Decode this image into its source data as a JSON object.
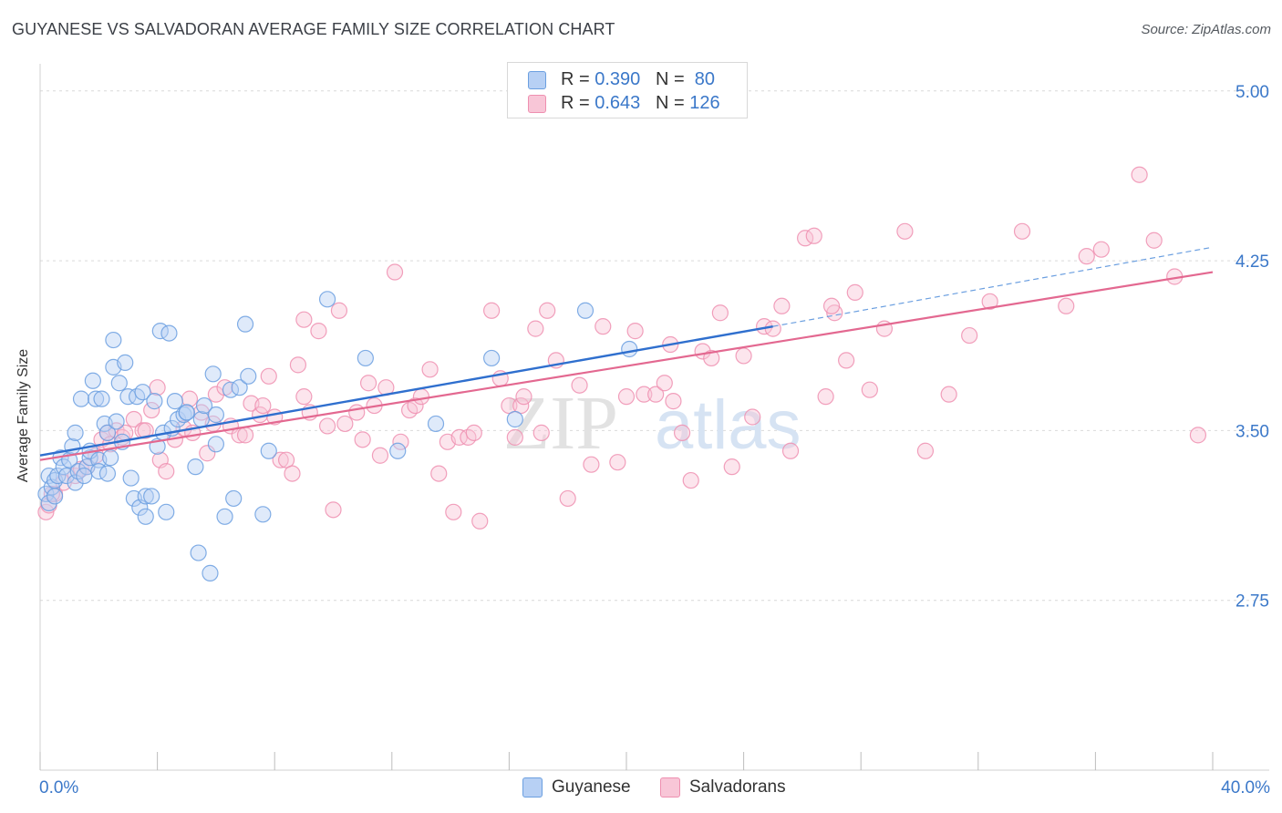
{
  "title": "GUYANESE VS SALVADORAN AVERAGE FAMILY SIZE CORRELATION CHART",
  "source": "Source: ZipAtlas.com",
  "watermark": "ZIPatlas",
  "colors": {
    "guyanese": "#6b9fe0",
    "guyanese_fill": "#b7d0f4",
    "guyanese_line": "#2f6fce",
    "salvadoran": "#ee8fb0",
    "salvadoran_fill": "#f8c6d7",
    "salvadoran_line": "#e36890",
    "tick_text": "#3b78c9",
    "grid": "#d9d9d9"
  },
  "legend": {
    "rows": [
      {
        "r_label": "R = ",
        "r_value": "0.390",
        "n_label": "N = ",
        "n_value": " 80"
      },
      {
        "r_label": "R = ",
        "r_value": "0.643",
        "n_label": "N = ",
        "n_value": "126"
      }
    ]
  },
  "bottom_legend": [
    "Guyanese",
    "Salvadorans"
  ],
  "chart_data": {
    "type": "scatter",
    "title": "GUYANESE VS SALVADORAN AVERAGE FAMILY SIZE CORRELATION CHART",
    "xlabel": "",
    "ylabel": "Average Family Size",
    "xlim": [
      0,
      40
    ],
    "ylim": [
      2.0,
      5.12
    ],
    "x_tick_labels": [
      "0.0%",
      "40.0%"
    ],
    "y_ticks": [
      2.75,
      3.5,
      4.25,
      5.0
    ],
    "y_tick_labels": [
      "2.75",
      "3.50",
      "4.25",
      "5.00"
    ],
    "grid": true,
    "legend_position": "top-center",
    "series": [
      {
        "name": "Guyanese",
        "r": 0.39,
        "n": 80,
        "trend": {
          "x0": 0,
          "y0": 3.39,
          "x1": 25,
          "y1": 3.96,
          "dashed_to_x": 40,
          "dashed_to_y": 4.31
        },
        "points": [
          [
            0.2,
            3.22
          ],
          [
            0.3,
            3.3
          ],
          [
            0.3,
            3.18
          ],
          [
            0.4,
            3.25
          ],
          [
            0.5,
            3.28
          ],
          [
            0.6,
            3.3
          ],
          [
            0.7,
            3.38
          ],
          [
            0.8,
            3.34
          ],
          [
            0.9,
            3.3
          ],
          [
            1.0,
            3.37
          ],
          [
            1.1,
            3.43
          ],
          [
            1.2,
            3.27
          ],
          [
            1.2,
            3.49
          ],
          [
            1.3,
            3.32
          ],
          [
            1.4,
            3.64
          ],
          [
            1.6,
            3.34
          ],
          [
            1.7,
            3.38
          ],
          [
            1.7,
            3.41
          ],
          [
            1.8,
            3.72
          ],
          [
            1.9,
            3.64
          ],
          [
            2.0,
            3.37
          ],
          [
            2.0,
            3.32
          ],
          [
            2.1,
            3.64
          ],
          [
            2.2,
            3.53
          ],
          [
            2.3,
            3.49
          ],
          [
            2.4,
            3.38
          ],
          [
            2.5,
            3.78
          ],
          [
            2.5,
            3.9
          ],
          [
            2.6,
            3.54
          ],
          [
            2.7,
            3.71
          ],
          [
            2.8,
            3.45
          ],
          [
            2.9,
            3.8
          ],
          [
            3.0,
            3.65
          ],
          [
            3.1,
            3.29
          ],
          [
            3.2,
            3.2
          ],
          [
            3.3,
            3.65
          ],
          [
            3.4,
            3.16
          ],
          [
            3.5,
            3.67
          ],
          [
            3.6,
            3.21
          ],
          [
            3.6,
            3.12
          ],
          [
            3.8,
            3.21
          ],
          [
            3.9,
            3.63
          ],
          [
            4.0,
            3.43
          ],
          [
            4.1,
            3.94
          ],
          [
            4.2,
            3.49
          ],
          [
            4.3,
            3.14
          ],
          [
            4.4,
            3.93
          ],
          [
            4.5,
            3.51
          ],
          [
            4.6,
            3.63
          ],
          [
            4.7,
            3.55
          ],
          [
            4.9,
            3.57
          ],
          [
            5.0,
            3.58
          ],
          [
            5.3,
            3.34
          ],
          [
            5.4,
            2.96
          ],
          [
            5.5,
            3.55
          ],
          [
            5.6,
            3.61
          ],
          [
            5.8,
            2.87
          ],
          [
            5.9,
            3.75
          ],
          [
            6.0,
            3.44
          ],
          [
            6.0,
            3.57
          ],
          [
            6.3,
            3.12
          ],
          [
            6.5,
            3.68
          ],
          [
            6.6,
            3.2
          ],
          [
            6.8,
            3.69
          ],
          [
            7.0,
            3.97
          ],
          [
            7.1,
            3.74
          ],
          [
            7.6,
            3.13
          ],
          [
            7.8,
            3.41
          ],
          [
            9.8,
            4.08
          ],
          [
            11.1,
            3.82
          ],
          [
            12.2,
            3.41
          ],
          [
            13.5,
            3.53
          ],
          [
            15.4,
            3.82
          ],
          [
            16.2,
            3.55
          ],
          [
            18.6,
            4.03
          ],
          [
            20.1,
            3.86
          ],
          [
            0.5,
            3.21
          ],
          [
            1.5,
            3.3
          ],
          [
            2.3,
            3.31
          ],
          [
            5.0,
            3.58
          ]
        ]
      },
      {
        "name": "Salvadorans",
        "r": 0.643,
        "n": 126,
        "trend": {
          "x0": 0,
          "y0": 3.37,
          "x1": 40,
          "y1": 4.2
        },
        "points": [
          [
            0.2,
            3.14
          ],
          [
            0.3,
            3.17
          ],
          [
            0.5,
            3.22
          ],
          [
            0.8,
            3.27
          ],
          [
            1.2,
            3.3
          ],
          [
            1.4,
            3.33
          ],
          [
            1.6,
            3.34
          ],
          [
            1.9,
            3.39
          ],
          [
            2.1,
            3.46
          ],
          [
            2.3,
            3.49
          ],
          [
            2.4,
            3.44
          ],
          [
            2.6,
            3.5
          ],
          [
            2.8,
            3.47
          ],
          [
            2.9,
            3.49
          ],
          [
            3.2,
            3.55
          ],
          [
            3.5,
            3.5
          ],
          [
            3.8,
            3.59
          ],
          [
            4.0,
            3.69
          ],
          [
            4.1,
            3.37
          ],
          [
            4.3,
            3.32
          ],
          [
            4.6,
            3.46
          ],
          [
            4.9,
            3.51
          ],
          [
            5.1,
            3.64
          ],
          [
            5.2,
            3.49
          ],
          [
            5.5,
            3.58
          ],
          [
            5.7,
            3.4
          ],
          [
            5.9,
            3.53
          ],
          [
            6.0,
            3.66
          ],
          [
            6.3,
            3.69
          ],
          [
            6.5,
            3.52
          ],
          [
            6.8,
            3.48
          ],
          [
            7.0,
            3.48
          ],
          [
            7.2,
            3.62
          ],
          [
            7.5,
            3.57
          ],
          [
            7.6,
            3.61
          ],
          [
            7.8,
            3.74
          ],
          [
            8.0,
            3.56
          ],
          [
            8.2,
            3.37
          ],
          [
            8.4,
            3.37
          ],
          [
            8.6,
            3.31
          ],
          [
            8.8,
            3.79
          ],
          [
            9.0,
            3.65
          ],
          [
            9.2,
            3.58
          ],
          [
            9.5,
            3.94
          ],
          [
            9.8,
            3.52
          ],
          [
            10.0,
            3.15
          ],
          [
            10.2,
            4.03
          ],
          [
            10.4,
            3.53
          ],
          [
            10.8,
            3.58
          ],
          [
            11.0,
            3.46
          ],
          [
            11.2,
            3.71
          ],
          [
            11.4,
            3.61
          ],
          [
            11.6,
            3.39
          ],
          [
            11.8,
            3.69
          ],
          [
            12.1,
            4.2
          ],
          [
            12.3,
            3.45
          ],
          [
            12.6,
            3.59
          ],
          [
            12.8,
            3.61
          ],
          [
            13.0,
            3.65
          ],
          [
            13.3,
            3.77
          ],
          [
            13.6,
            3.31
          ],
          [
            13.9,
            3.45
          ],
          [
            14.1,
            3.14
          ],
          [
            14.3,
            3.47
          ],
          [
            14.6,
            3.47
          ],
          [
            14.8,
            3.49
          ],
          [
            15.0,
            3.1
          ],
          [
            15.4,
            4.03
          ],
          [
            15.7,
            3.73
          ],
          [
            16.0,
            3.61
          ],
          [
            16.2,
            3.47
          ],
          [
            16.4,
            3.61
          ],
          [
            16.5,
            3.65
          ],
          [
            16.9,
            3.95
          ],
          [
            17.1,
            3.49
          ],
          [
            17.3,
            4.03
          ],
          [
            17.6,
            3.81
          ],
          [
            18.0,
            3.2
          ],
          [
            18.4,
            3.7
          ],
          [
            18.8,
            3.35
          ],
          [
            19.2,
            3.96
          ],
          [
            19.7,
            3.36
          ],
          [
            20.0,
            3.65
          ],
          [
            20.3,
            3.94
          ],
          [
            20.6,
            3.66
          ],
          [
            21.0,
            3.66
          ],
          [
            21.3,
            3.71
          ],
          [
            21.6,
            3.63
          ],
          [
            21.9,
            3.49
          ],
          [
            22.2,
            3.28
          ],
          [
            22.6,
            3.85
          ],
          [
            22.9,
            3.82
          ],
          [
            23.2,
            4.02
          ],
          [
            23.6,
            3.34
          ],
          [
            24.0,
            3.83
          ],
          [
            24.3,
            3.56
          ],
          [
            24.7,
            3.96
          ],
          [
            25.0,
            3.95
          ],
          [
            25.3,
            4.05
          ],
          [
            25.6,
            3.41
          ],
          [
            26.1,
            4.35
          ],
          [
            26.4,
            4.36
          ],
          [
            26.8,
            3.65
          ],
          [
            27.1,
            4.02
          ],
          [
            27.5,
            3.81
          ],
          [
            27.8,
            4.11
          ],
          [
            28.3,
            3.68
          ],
          [
            28.8,
            3.95
          ],
          [
            29.5,
            4.38
          ],
          [
            30.2,
            3.41
          ],
          [
            31.0,
            3.66
          ],
          [
            31.7,
            3.92
          ],
          [
            32.4,
            4.07
          ],
          [
            33.5,
            4.38
          ],
          [
            35.0,
            4.05
          ],
          [
            35.7,
            4.27
          ],
          [
            36.2,
            4.3
          ],
          [
            37.5,
            4.63
          ],
          [
            38.0,
            4.34
          ],
          [
            38.7,
            4.18
          ],
          [
            39.5,
            3.48
          ],
          [
            27.0,
            4.05
          ],
          [
            21.5,
            3.88
          ],
          [
            9.0,
            3.99
          ],
          [
            3.6,
            3.5
          ],
          [
            0.4,
            3.22
          ]
        ]
      }
    ]
  }
}
